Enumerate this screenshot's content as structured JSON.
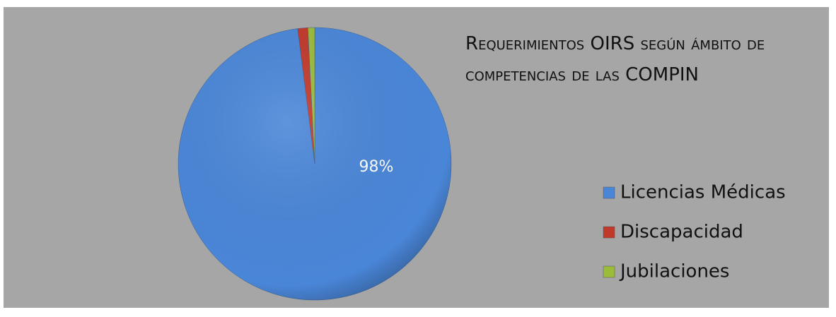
{
  "chart_data": {
    "type": "pie",
    "title": "Requerimientos OIRS según ámbito de competencias de las COMPIN",
    "categories": [
      "Licencias Médicas",
      "Discapacidad",
      "Jubilaciones"
    ],
    "values": [
      98,
      1.2,
      0.8
    ],
    "value_labels": [
      "98%",
      null,
      null
    ],
    "colors": [
      "#4a86d8",
      "#c0392b",
      "#9bbb3b"
    ],
    "legend": "right"
  }
}
